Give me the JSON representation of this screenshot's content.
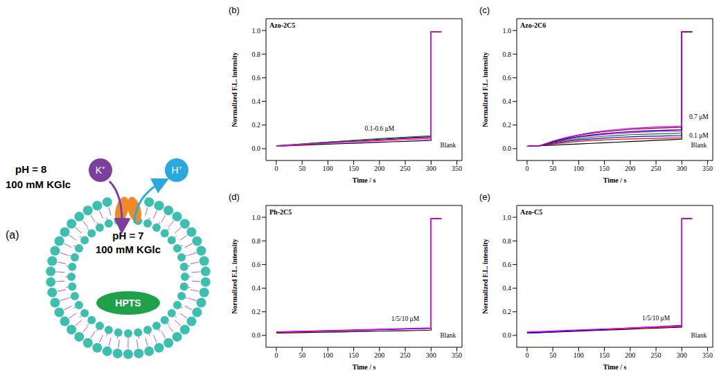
{
  "diagram": {
    "label": "(a)",
    "outside": {
      "ph": "pH = 8",
      "salt": "100 mM KGlc"
    },
    "inside": {
      "ph": "pH = 7",
      "salt": "100 mM KGlc"
    },
    "ions": {
      "in": "K⁺",
      "out": "H⁺"
    },
    "dye": "HPTS"
  },
  "chart_data": [
    {
      "type": "line",
      "panel": "(b)",
      "title": "Azo-2C5",
      "x_label": "Time / s",
      "y_label": "Normalized F.L. intensity",
      "xlim": [
        -20,
        360
      ],
      "xticks": [
        0,
        50,
        100,
        150,
        200,
        250,
        300,
        350
      ],
      "ylim": [
        -0.1,
        1.1
      ],
      "yticks": [
        {
          "value": 0,
          "label": "0.0"
        },
        {
          "value": 0.2,
          "label": "0.2"
        },
        {
          "value": 0.4,
          "label": "0.4"
        },
        {
          "value": 0.6,
          "label": "0.6"
        },
        {
          "value": 0.8,
          "label": "0.8"
        },
        {
          "value": 1,
          "label": "1.0"
        }
      ],
      "x": [
        0,
        25,
        50,
        75,
        100,
        125,
        150,
        175,
        200,
        225,
        250,
        275,
        300,
        300,
        320
      ],
      "series": [
        {
          "color": "#000000",
          "values": [
            0.02,
            0.025,
            0.03,
            0.034,
            0.038,
            0.042,
            0.046,
            0.05,
            0.054,
            0.058,
            0.062,
            0.066,
            0.07,
            0.99,
            0.99
          ]
        },
        {
          "color": "#ff0000",
          "values": [
            0.02,
            0.027,
            0.034,
            0.041,
            0.048,
            0.055,
            0.061,
            0.067,
            0.073,
            0.079,
            0.085,
            0.09,
            0.095,
            0.99,
            0.99
          ]
        },
        {
          "color": "#0000ff",
          "values": [
            0.025,
            0.032,
            0.04,
            0.047,
            0.054,
            0.061,
            0.068,
            0.074,
            0.08,
            0.086,
            0.092,
            0.097,
            0.102,
            0.99,
            0.99
          ]
        },
        {
          "color": "#008000",
          "values": [
            0.02,
            0.03,
            0.039,
            0.048,
            0.056,
            0.064,
            0.071,
            0.078,
            0.085,
            0.091,
            0.097,
            0.103,
            0.108,
            0.99,
            0.99
          ]
        },
        {
          "color": "#ff00ff",
          "values": [
            0.025,
            0.03,
            0.036,
            0.042,
            0.047,
            0.052,
            0.057,
            0.062,
            0.067,
            0.072,
            0.077,
            0.081,
            0.085,
            0.99,
            0.99
          ]
        }
      ],
      "annotations": [
        {
          "text": "0.1-0.6 μM",
          "x": 200,
          "y": 0.17
        },
        {
          "text": "Blank",
          "x": 333,
          "y": 0.03
        }
      ]
    },
    {
      "type": "line",
      "panel": "(c)",
      "title": "Azo-2C6",
      "x_label": "Time / s",
      "y_label": "Normalized F.L. intensity",
      "xlim": [
        -20,
        360
      ],
      "xticks": [
        0,
        50,
        100,
        150,
        200,
        250,
        300,
        350
      ],
      "ylim": [
        -0.1,
        1.1
      ],
      "yticks": [
        {
          "value": 0,
          "label": "0.0"
        },
        {
          "value": 0.2,
          "label": "0.2"
        },
        {
          "value": 0.4,
          "label": "0.4"
        },
        {
          "value": 0.6,
          "label": "0.6"
        },
        {
          "value": 0.8,
          "label": "0.8"
        },
        {
          "value": 1,
          "label": "1.0"
        }
      ],
      "x": [
        0,
        25,
        50,
        75,
        100,
        125,
        150,
        175,
        200,
        225,
        250,
        275,
        300,
        300,
        320
      ],
      "series": [
        {
          "color": "#000000",
          "values": [
            0.02,
            0.025,
            0.03,
            0.035,
            0.04,
            0.045,
            0.05,
            0.055,
            0.06,
            0.065,
            0.07,
            0.075,
            0.08,
            0.99,
            0.99
          ]
        },
        {
          "color": "#ff0000",
          "values": [
            0.02,
            0.025,
            0.04,
            0.052,
            0.062,
            0.069,
            0.075,
            0.079,
            0.082,
            0.085,
            0.087,
            0.089,
            0.09,
            0.99,
            0.99
          ]
        },
        {
          "color": "#0000ff",
          "values": [
            0.02,
            0.025,
            0.045,
            0.061,
            0.073,
            0.082,
            0.09,
            0.096,
            0.1,
            0.104,
            0.106,
            0.108,
            0.11,
            0.99,
            0.99
          ]
        },
        {
          "color": "#008000",
          "values": [
            0.02,
            0.025,
            0.05,
            0.069,
            0.084,
            0.096,
            0.105,
            0.112,
            0.118,
            0.122,
            0.125,
            0.128,
            0.13,
            0.99,
            0.99
          ]
        },
        {
          "color": "#ff00ff",
          "values": [
            0.02,
            0.025,
            0.055,
            0.078,
            0.096,
            0.109,
            0.12,
            0.129,
            0.135,
            0.141,
            0.145,
            0.148,
            0.15,
            0.99,
            0.99
          ]
        },
        {
          "color": "#000080",
          "values": [
            0.02,
            0.025,
            0.057,
            0.082,
            0.101,
            0.116,
            0.128,
            0.137,
            0.144,
            0.15,
            0.154,
            0.157,
            0.16,
            0.99,
            0.99
          ]
        },
        {
          "color": "#800080",
          "values": [
            0.02,
            0.025,
            0.062,
            0.09,
            0.112,
            0.13,
            0.143,
            0.154,
            0.162,
            0.168,
            0.173,
            0.177,
            0.18,
            0.99,
            0.99
          ]
        },
        {
          "color": "#cc00cc",
          "values": [
            0.02,
            0.025,
            0.064,
            0.094,
            0.118,
            0.136,
            0.151,
            0.162,
            0.171,
            0.177,
            0.183,
            0.187,
            0.19,
            0.99,
            0.99
          ]
        }
      ],
      "annotations": [
        {
          "text": "0.7 μM",
          "x": 333,
          "y": 0.27
        },
        {
          "text": "0.1 μM",
          "x": 333,
          "y": 0.11
        },
        {
          "text": "Blank",
          "x": 333,
          "y": 0.03
        }
      ]
    },
    {
      "type": "line",
      "panel": "(d)",
      "title": "Ph-2C5",
      "x_label": "Time / s",
      "y_label": "Normalized F.L. intensity",
      "xlim": [
        -20,
        360
      ],
      "xticks": [
        0,
        50,
        100,
        150,
        200,
        250,
        300,
        350
      ],
      "ylim": [
        -0.1,
        1.1
      ],
      "yticks": [
        {
          "value": 0,
          "label": "0.0"
        },
        {
          "value": 0.2,
          "label": "0.2"
        },
        {
          "value": 0.4,
          "label": "0.4"
        },
        {
          "value": 0.6,
          "label": "0.6"
        },
        {
          "value": 0.8,
          "label": "0.8"
        },
        {
          "value": 1,
          "label": "1.0"
        }
      ],
      "x": [
        0,
        25,
        50,
        75,
        100,
        125,
        150,
        175,
        200,
        225,
        250,
        275,
        300,
        300,
        320
      ],
      "series": [
        {
          "color": "#000000",
          "values": [
            0.02,
            0.022,
            0.024,
            0.026,
            0.028,
            0.03,
            0.032,
            0.034,
            0.036,
            0.038,
            0.04,
            0.042,
            0.045,
            0.99,
            0.99
          ]
        },
        {
          "color": "#ff0000",
          "values": [
            0.025,
            0.028,
            0.031,
            0.034,
            0.037,
            0.04,
            0.042,
            0.045,
            0.048,
            0.051,
            0.054,
            0.057,
            0.06,
            0.99,
            0.99
          ]
        },
        {
          "color": "#0000ff",
          "values": [
            0.03,
            0.032,
            0.035,
            0.037,
            0.04,
            0.042,
            0.045,
            0.047,
            0.05,
            0.052,
            0.055,
            0.057,
            0.06,
            0.99,
            0.99
          ]
        },
        {
          "color": "#ff00ff",
          "values": [
            0.03,
            0.033,
            0.036,
            0.039,
            0.042,
            0.045,
            0.048,
            0.05,
            0.053,
            0.056,
            0.059,
            0.062,
            0.065,
            0.99,
            0.99
          ]
        }
      ],
      "annotations": [
        {
          "text": "1/5/10 μM",
          "x": 250,
          "y": 0.14
        },
        {
          "text": "Blank",
          "x": 333,
          "y": 0.0
        }
      ]
    },
    {
      "type": "line",
      "panel": "(e)",
      "title": "Azo-C5",
      "x_label": "Time / s",
      "y_label": "Normalized F.L. intensity",
      "xlim": [
        -20,
        360
      ],
      "xticks": [
        0,
        50,
        100,
        150,
        200,
        250,
        300,
        350
      ],
      "ylim": [
        -0.1,
        1.1
      ],
      "yticks": [
        {
          "value": 0,
          "label": "0.0"
        },
        {
          "value": 0.2,
          "label": "0.2"
        },
        {
          "value": 0.4,
          "label": "0.4"
        },
        {
          "value": 0.6,
          "label": "0.6"
        },
        {
          "value": 0.8,
          "label": "0.8"
        },
        {
          "value": 1,
          "label": "1.0"
        }
      ],
      "x": [
        0,
        25,
        50,
        75,
        100,
        125,
        150,
        175,
        200,
        225,
        250,
        275,
        300,
        300,
        320
      ],
      "series": [
        {
          "color": "#000000",
          "values": [
            0.02,
            0.024,
            0.028,
            0.033,
            0.037,
            0.041,
            0.045,
            0.049,
            0.053,
            0.058,
            0.062,
            0.066,
            0.07,
            0.99,
            0.99
          ]
        },
        {
          "color": "#ff0000",
          "values": [
            0.025,
            0.029,
            0.033,
            0.038,
            0.042,
            0.046,
            0.05,
            0.054,
            0.058,
            0.063,
            0.067,
            0.071,
            0.075,
            0.99,
            0.99
          ]
        },
        {
          "color": "#0000ff",
          "values": [
            0.02,
            0.025,
            0.031,
            0.036,
            0.042,
            0.047,
            0.052,
            0.058,
            0.063,
            0.069,
            0.074,
            0.08,
            0.085,
            0.99,
            0.99
          ]
        },
        {
          "color": "#ff00ff",
          "values": [
            0.03,
            0.034,
            0.038,
            0.043,
            0.047,
            0.051,
            0.055,
            0.059,
            0.063,
            0.068,
            0.072,
            0.076,
            0.08,
            0.99,
            0.99
          ]
        }
      ],
      "annotations": [
        {
          "text": "1/5/10 μM",
          "x": 250,
          "y": 0.15
        },
        {
          "text": "Blank",
          "x": 333,
          "y": 0.0
        }
      ]
    }
  ]
}
